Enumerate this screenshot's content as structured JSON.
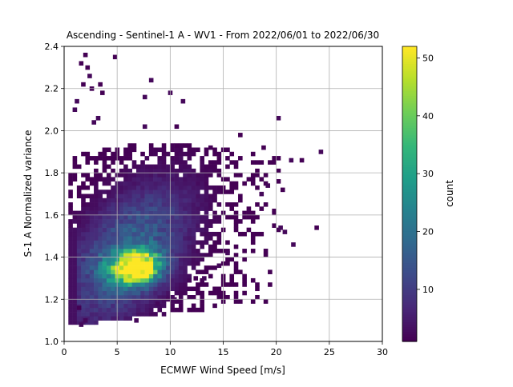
{
  "chart_data": {
    "type": "heatmap",
    "title": "Ascending - Sentinel-1 A - WV1 - From 2022/06/01 to 2022/06/30",
    "xlabel": "ECMWF Wind Speed [m/s]",
    "ylabel": "S-1 A Normalized variance",
    "xlim": [
      0,
      30
    ],
    "ylim": [
      1.0,
      2.4
    ],
    "x_ticks": [
      0,
      5,
      10,
      15,
      20,
      25,
      30
    ],
    "x_tick_labels": [
      "0",
      "5",
      "10",
      "15",
      "20",
      "25",
      "30"
    ],
    "y_ticks": [
      1.0,
      1.2,
      1.4,
      1.6,
      1.8,
      2.0,
      2.2,
      2.4
    ],
    "y_tick_labels": [
      "1.0",
      "1.2",
      "1.4",
      "1.6",
      "1.8",
      "2.0",
      "2.2",
      "2.4"
    ],
    "grid": true,
    "colormap": "viridis",
    "colorbar": {
      "label": "count",
      "min": 1,
      "max": 52,
      "ticks": [
        10,
        20,
        30,
        40,
        50
      ],
      "tick_labels": [
        "10",
        "20",
        "30",
        "40",
        "50"
      ]
    },
    "bins": {
      "x_bin_width": 0.4,
      "y_bin_width": 0.02
    },
    "density_peak": {
      "x": 6.5,
      "y": 1.34,
      "count": 52
    },
    "secondary_peak": {
      "x": 7.5,
      "y": 1.39,
      "count": 44
    },
    "sparse_points": [
      [
        2.0,
        2.36
      ],
      [
        1.6,
        2.32
      ],
      [
        2.2,
        2.3
      ],
      [
        4.8,
        2.35
      ],
      [
        2.4,
        2.26
      ],
      [
        1.8,
        2.22
      ],
      [
        3.4,
        2.22
      ],
      [
        2.6,
        2.2
      ],
      [
        3.6,
        2.18
      ],
      [
        1.2,
        2.14
      ],
      [
        10.0,
        2.18
      ],
      [
        11.2,
        2.14
      ],
      [
        8.2,
        2.24
      ],
      [
        7.6,
        2.16
      ],
      [
        1.0,
        2.1
      ],
      [
        2.8,
        2.04
      ],
      [
        3.2,
        2.06
      ],
      [
        7.6,
        2.02
      ],
      [
        10.6,
        2.02
      ],
      [
        20.2,
        2.06
      ],
      [
        13.8,
        1.92
      ],
      [
        16.6,
        1.98
      ],
      [
        18.8,
        1.92
      ],
      [
        21.4,
        1.86
      ],
      [
        22.4,
        1.86
      ],
      [
        24.2,
        1.9
      ],
      [
        20.6,
        1.72
      ],
      [
        20.2,
        1.76
      ],
      [
        19.8,
        1.62
      ],
      [
        20.4,
        1.54
      ],
      [
        20.8,
        1.52
      ],
      [
        21.6,
        1.46
      ],
      [
        23.8,
        1.54
      ],
      [
        18.6,
        1.7
      ],
      [
        19.2,
        1.74
      ],
      [
        14.6,
        1.36
      ],
      [
        15.4,
        1.42
      ],
      [
        13.2,
        1.3
      ],
      [
        12.4,
        1.3
      ],
      [
        2.0,
        1.1
      ],
      [
        1.6,
        1.08
      ],
      [
        1.4,
        1.16
      ],
      [
        9.8,
        1.2
      ],
      [
        10.4,
        1.2
      ],
      [
        8.8,
        1.18
      ],
      [
        6.8,
        1.1
      ]
    ]
  }
}
